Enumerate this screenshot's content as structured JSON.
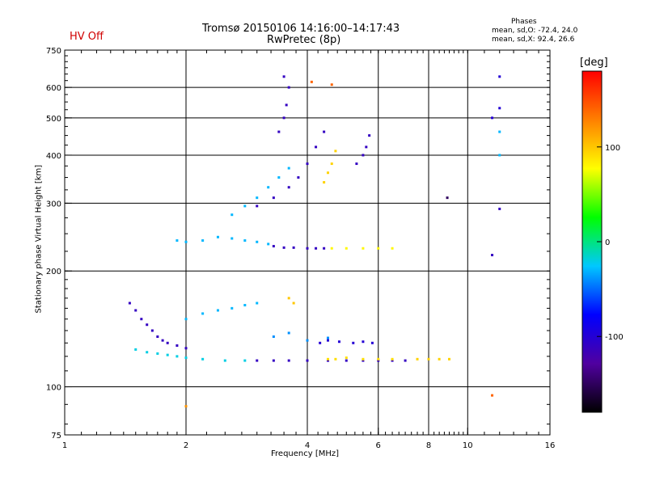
{
  "header": {
    "title_line1": "Tromsø 20150106 14:16:00–14:17:43",
    "title_line2": "RwPretec (8p)",
    "status": "HV Off",
    "status_color": "#d00000",
    "stats_heading": "Phases",
    "stats_o": "mean, sd,O: -72.4, 24.0",
    "stats_x": "mean, sd,X:  92.4, 26.6",
    "colorbar_unit": "[deg]"
  },
  "chart_data": {
    "type": "scatter",
    "xlabel": "Frequency [MHz]",
    "ylabel": "Stationary phase Virtual Height [km]",
    "x_scale": "log",
    "y_scale": "log",
    "xlim": [
      1,
      16
    ],
    "ylim": [
      75,
      750
    ],
    "x_ticks": [
      1,
      2,
      4,
      6,
      8,
      10,
      16
    ],
    "y_ticks": [
      75,
      100,
      200,
      300,
      400,
      500,
      600,
      750
    ],
    "x_gridlines": [
      2,
      4,
      6,
      8,
      10
    ],
    "y_gridlines": [
      100,
      200,
      300,
      400,
      500,
      600
    ],
    "grid": true,
    "colorbar": {
      "label": "[deg]",
      "range": [
        -180,
        180
      ],
      "ticks": [
        -100,
        0,
        100
      ],
      "colors": [
        "#000000",
        "#5000a0",
        "#0000ff",
        "#00c8ff",
        "#00ff00",
        "#ffff00",
        "#ff8000",
        "#ff0000"
      ]
    },
    "series": [
      {
        "x": [
          1.5,
          1.6,
          1.7,
          1.8,
          1.9,
          2.0,
          2.2,
          2.5,
          2.8
        ],
        "y": [
          125,
          123,
          122,
          121,
          120,
          119,
          118,
          117,
          117
        ],
        "phase": -20
      },
      {
        "x": [
          1.45,
          1.5,
          1.55,
          1.6,
          1.65,
          1.7,
          1.75,
          1.8,
          1.9,
          2.0
        ],
        "y": [
          165,
          158,
          150,
          145,
          140,
          135,
          132,
          130,
          128,
          126
        ],
        "phase": -110
      },
      {
        "x": [
          2.0,
          2.2,
          2.4,
          2.6,
          2.8,
          3.0
        ],
        "y": [
          150,
          155,
          158,
          160,
          163,
          165
        ],
        "phase": -30
      },
      {
        "x": [
          3.0,
          3.3,
          3.6,
          4.0,
          4.5,
          5.0,
          5.5,
          6.0,
          6.5,
          7.0
        ],
        "y": [
          117,
          117,
          117,
          117,
          117,
          117,
          117,
          117,
          117,
          117
        ],
        "phase": -110
      },
      {
        "x": [
          7.5,
          8.0,
          8.5,
          9.0
        ],
        "y": [
          118,
          118,
          118,
          118
        ],
        "phase": 95
      },
      {
        "x": [
          4.5,
          4.7,
          5.0,
          5.5,
          6.0,
          6.5
        ],
        "y": [
          118,
          118,
          119,
          118,
          118,
          118
        ],
        "phase": 90
      },
      {
        "x": [
          3.3,
          3.6,
          4.0,
          4.5
        ],
        "y": [
          135,
          138,
          132,
          134
        ],
        "phase": -40
      },
      {
        "x": [
          3.6,
          3.7
        ],
        "y": [
          170,
          165
        ],
        "phase": 100
      },
      {
        "x": [
          4.3,
          4.5,
          4.8,
          5.2,
          5.5,
          5.8
        ],
        "y": [
          130,
          132,
          131,
          130,
          131,
          130
        ],
        "phase": -100
      },
      {
        "x": [
          3.3,
          3.5,
          3.7,
          4.0,
          4.2,
          4.4
        ],
        "y": [
          232,
          230,
          230,
          229,
          229,
          229
        ],
        "phase": -110
      },
      {
        "x": [
          4.6,
          5.0,
          5.5,
          6.0,
          6.5
        ],
        "y": [
          229,
          229,
          229,
          229,
          229
        ],
        "phase": 80
      },
      {
        "x": [
          1.9,
          2.0,
          2.2,
          2.4,
          2.6,
          2.8,
          3.0,
          3.2
        ],
        "y": [
          240,
          238,
          240,
          245,
          243,
          240,
          238,
          235
        ],
        "phase": -30
      },
      {
        "x": [
          2.6,
          2.8,
          3.0,
          3.2,
          3.4,
          3.6
        ],
        "y": [
          280,
          295,
          310,
          330,
          350,
          370
        ],
        "phase": -30
      },
      {
        "x": [
          3.0,
          3.3,
          3.6,
          3.8,
          4.0,
          4.2,
          4.4
        ],
        "y": [
          295,
          310,
          330,
          350,
          380,
          420,
          460
        ],
        "phase": -110
      },
      {
        "x": [
          4.4,
          4.5,
          4.6,
          4.7
        ],
        "y": [
          340,
          360,
          380,
          410
        ],
        "phase": 95
      },
      {
        "x": [
          5.3,
          5.5,
          5.6,
          5.7
        ],
        "y": [
          380,
          400,
          420,
          450
        ],
        "phase": -110
      },
      {
        "x": [
          3.4,
          3.5,
          3.55,
          3.6
        ],
        "y": [
          460,
          500,
          540,
          600
        ],
        "phase": -110
      },
      {
        "x": [
          3.5
        ],
        "y": [
          640
        ],
        "phase": -110
      },
      {
        "x": [
          12.0,
          12.0,
          11.5
        ],
        "y": [
          640,
          530,
          500
        ],
        "phase": -100
      },
      {
        "x": [
          12.0,
          12.0
        ],
        "y": [
          460,
          400
        ],
        "phase": -30
      },
      {
        "x": [
          8.9
        ],
        "y": [
          310
        ],
        "phase": -150
      },
      {
        "x": [
          11.5,
          12.0
        ],
        "y": [
          220,
          290
        ],
        "phase": -110
      },
      {
        "x": [
          4.1,
          4.6,
          11.5
        ],
        "y": [
          620,
          610,
          95
        ],
        "phase": 140
      },
      {
        "x": [
          2.0
        ],
        "y": [
          89
        ],
        "phase": 120
      }
    ]
  }
}
